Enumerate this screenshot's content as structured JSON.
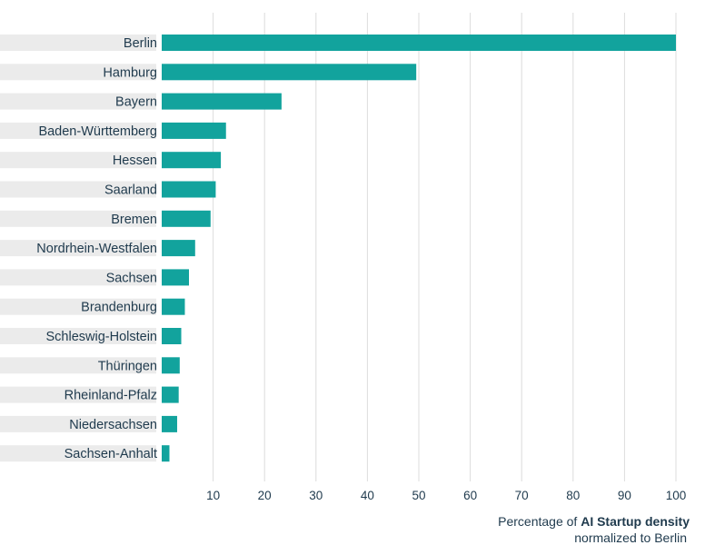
{
  "chart_data": {
    "type": "bar",
    "orientation": "horizontal",
    "categories": [
      "Berlin",
      "Hamburg",
      "Bayern",
      "Baden-Württemberg",
      "Hessen",
      "Saarland",
      "Bremen",
      "Nordrhein-Westfalen",
      "Sachsen",
      "Brandenburg",
      "Schleswig-Holstein",
      "Thüringen",
      "Rheinland-Pfalz",
      "Niedersachsen",
      "Sachsen-Anhalt"
    ],
    "values": [
      100,
      49.5,
      23.3,
      12.5,
      11.5,
      10.5,
      9.5,
      6.5,
      5.3,
      4.5,
      3.8,
      3.5,
      3.3,
      3.0,
      1.5
    ],
    "xticks": [
      10,
      20,
      30,
      40,
      50,
      60,
      70,
      80,
      90,
      100
    ],
    "xlim": [
      0,
      100
    ],
    "xlabel_prefix": "Percentage of ",
    "xlabel_bold": "AI Startup density",
    "xlabel_line2": "normalized to Berlin",
    "grid": true,
    "colors": {
      "bar": "#12a39d",
      "label_band": "#ebebeb",
      "grid": "#dcdcdc",
      "text": "#1f3a4d"
    }
  }
}
